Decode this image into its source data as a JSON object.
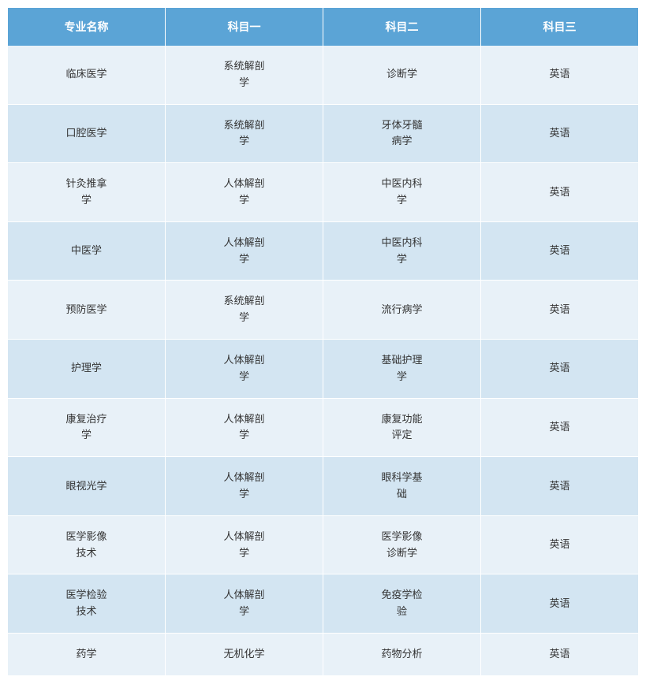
{
  "table": {
    "type": "table",
    "header_bg_color": "#5ba4d6",
    "header_text_color": "#ffffff",
    "row_even_bg": "#e8f1f8",
    "row_odd_bg": "#d3e5f2",
    "body_text_color": "#333333",
    "border_color": "#ffffff",
    "header_fontsize": 14,
    "body_fontsize": 13,
    "columns": [
      "专业名称",
      "科目一",
      "科目二",
      "科目三"
    ],
    "rows": [
      [
        "临床医学",
        "系统解剖\n学",
        "诊断学",
        "英语"
      ],
      [
        "口腔医学",
        "系统解剖\n学",
        "牙体牙髓\n病学",
        "英语"
      ],
      [
        "针灸推拿\n学",
        "人体解剖\n学",
        "中医内科\n学",
        "英语"
      ],
      [
        "中医学",
        "人体解剖\n学",
        "中医内科\n学",
        "英语"
      ],
      [
        "预防医学",
        "系统解剖\n学",
        "流行病学",
        "英语"
      ],
      [
        "护理学",
        "人体解剖\n学",
        "基础护理\n学",
        "英语"
      ],
      [
        "康复治疗\n学",
        "人体解剖\n学",
        "康复功能\n评定",
        "英语"
      ],
      [
        "眼视光学",
        "人体解剖\n学",
        "眼科学基\n础",
        "英语"
      ],
      [
        "医学影像\n技术",
        "人体解剖\n学",
        "医学影像\n诊断学",
        "英语"
      ],
      [
        "医学检验\n技术",
        "人体解剖\n学",
        "免疫学检\n验",
        "英语"
      ],
      [
        "药学",
        "无机化学",
        "药物分析",
        "英语"
      ]
    ]
  }
}
